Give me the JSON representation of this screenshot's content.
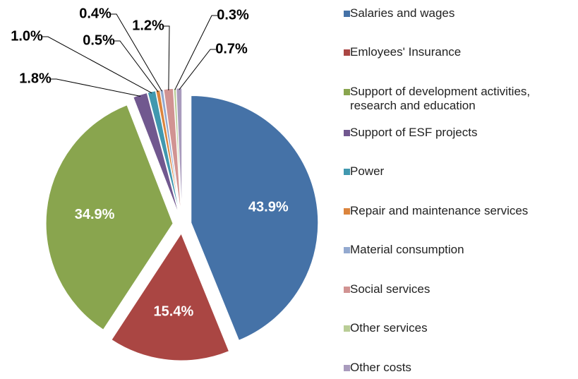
{
  "chart_data": {
    "type": "pie",
    "categories": [
      "Salaries and wages",
      "Emloyees' Insurance",
      "Support of development activities, research and education",
      "Support of ESF projects",
      "Power",
      "Repair and maintenance services",
      "Material consumption",
      "Social services",
      "Other services",
      "Other costs"
    ],
    "values": [
      43.9,
      15.4,
      34.9,
      1.8,
      1.0,
      0.5,
      0.4,
      1.2,
      0.3,
      0.7
    ],
    "value_labels": [
      "43.9%",
      "15.4%",
      "34.9%",
      "1.8%",
      "1.0%",
      "0.5%",
      "0.4%",
      "1.2%",
      "0.3%",
      "0.7%"
    ],
    "colors": [
      "#4572a7",
      "#aa4643",
      "#89a54e",
      "#71588f",
      "#4198af",
      "#db843d",
      "#93a9cf",
      "#d19392",
      "#b9cd96",
      "#a99bbd"
    ],
    "legend": "right"
  }
}
